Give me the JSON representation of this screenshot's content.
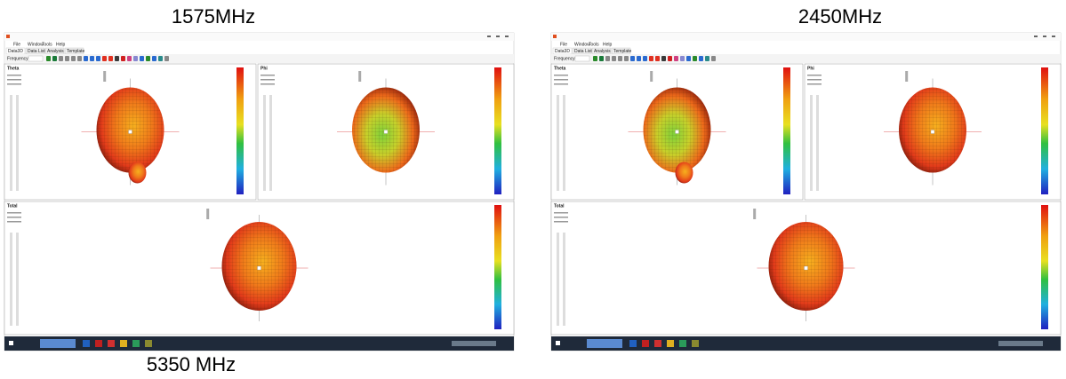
{
  "labels": {
    "left_top": "1575MHz",
    "right_top": "2450MHz",
    "left_bottom": "5350 MHz"
  },
  "screenshots": [
    {
      "menu": [
        "File",
        "Window",
        "Tools",
        "Help"
      ],
      "tabs": [
        "Data3D",
        "Data List",
        "Analysis",
        "Template"
      ],
      "toolbar_label": "Frequency",
      "panels": [
        "Theta",
        "Phi",
        "Total"
      ]
    },
    {
      "menu": [
        "File",
        "Window",
        "Tools",
        "Help"
      ],
      "tabs": [
        "Data3D",
        "Data List",
        "Analysis",
        "Template"
      ],
      "toolbar_label": "Frequency",
      "panels": [
        "Theta",
        "Phi",
        "Total"
      ]
    }
  ]
}
